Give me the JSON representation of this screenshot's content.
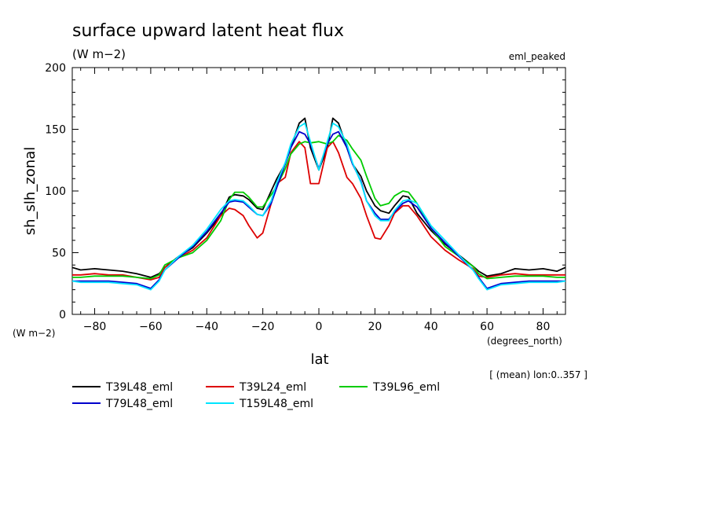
{
  "chart_data": {
    "type": "line",
    "title": "surface upward latent heat flux",
    "units": "(W m−2)",
    "experiment": "eml_peaked",
    "ylabel": "sh_slh_zonal",
    "yunits": "(W m−2)",
    "xlabel": "lat",
    "xunits": "(degrees_north)",
    "note": "[ (mean) lon:0..357 ]",
    "xlim": [
      -88,
      88
    ],
    "ylim": [
      0,
      200
    ],
    "xticks": [
      -80,
      -60,
      -40,
      -20,
      0,
      20,
      40,
      60,
      80
    ],
    "yticks": [
      0,
      50,
      100,
      150,
      200
    ],
    "grid": false,
    "x": [
      -88,
      -85,
      -80,
      -75,
      -70,
      -65,
      -60,
      -57,
      -55,
      -50,
      -45,
      -40,
      -35,
      -32,
      -30,
      -27,
      -25,
      -22,
      -20,
      -17,
      -15,
      -12,
      -10,
      -7,
      -5,
      -3,
      0,
      3,
      5,
      7,
      10,
      12,
      15,
      17,
      20,
      22,
      25,
      27,
      30,
      32,
      35,
      40,
      45,
      50,
      55,
      57,
      60,
      65,
      70,
      75,
      80,
      85,
      88
    ],
    "series": [
      {
        "name": "T39L48_eml",
        "color": "#000000",
        "values": [
          38,
          36,
          37,
          36,
          35,
          33,
          30,
          33,
          38,
          47,
          54,
          66,
          80,
          95,
          97,
          96,
          93,
          86,
          85,
          100,
          110,
          122,
          135,
          155,
          159,
          135,
          117,
          135,
          159,
          155,
          135,
          122,
          112,
          100,
          88,
          84,
          82,
          88,
          96,
          95,
          82,
          68,
          57,
          48,
          39,
          35,
          31,
          33,
          37,
          36,
          37,
          35,
          38
        ]
      },
      {
        "name": "T39L24_eml",
        "color": "#dd0000",
        "values": [
          32,
          32,
          33,
          32,
          32,
          30,
          28,
          30,
          38,
          46,
          52,
          62,
          80,
          86,
          85,
          80,
          72,
          62,
          66,
          90,
          106,
          111,
          131,
          140,
          135,
          106,
          106,
          135,
          140,
          131,
          111,
          106,
          94,
          80,
          62,
          61,
          72,
          82,
          88,
          88,
          80,
          63,
          52,
          44,
          37,
          31,
          30,
          32,
          33,
          32,
          32,
          32,
          32
        ]
      },
      {
        "name": "T39L96_eml",
        "color": "#00cc00",
        "values": [
          30,
          30,
          31,
          31,
          31,
          30,
          29,
          32,
          40,
          46,
          50,
          60,
          76,
          93,
          99,
          99,
          95,
          87,
          87,
          97,
          104,
          118,
          130,
          138,
          140,
          139,
          140,
          138,
          140,
          145,
          141,
          134,
          125,
          112,
          94,
          88,
          90,
          96,
          100,
          99,
          90,
          70,
          55,
          47,
          39,
          33,
          29,
          30,
          31,
          31,
          31,
          30,
          30
        ]
      },
      {
        "name": "T79L48_eml",
        "color": "#0000cc",
        "values": [
          27,
          27,
          27,
          27,
          26,
          25,
          21,
          28,
          36,
          46,
          55,
          67,
          82,
          91,
          92,
          91,
          87,
          81,
          80,
          90,
          103,
          122,
          135,
          148,
          146,
          138,
          118,
          138,
          146,
          148,
          135,
          122,
          108,
          92,
          82,
          77,
          77,
          83,
          90,
          92,
          87,
          70,
          58,
          47,
          36,
          30,
          21,
          25,
          26,
          27,
          27,
          27,
          27
        ]
      },
      {
        "name": "T159L48_eml",
        "color": "#00e5ff",
        "values": [
          27,
          26,
          26,
          26,
          25,
          24,
          20,
          27,
          36,
          47,
          56,
          69,
          85,
          92,
          93,
          92,
          88,
          81,
          80,
          92,
          107,
          123,
          138,
          152,
          155,
          140,
          117,
          140,
          155,
          152,
          138,
          123,
          107,
          92,
          80,
          76,
          76,
          84,
          92,
          93,
          90,
          72,
          60,
          48,
          36,
          29,
          20,
          24,
          25,
          26,
          26,
          26,
          27
        ]
      }
    ]
  }
}
